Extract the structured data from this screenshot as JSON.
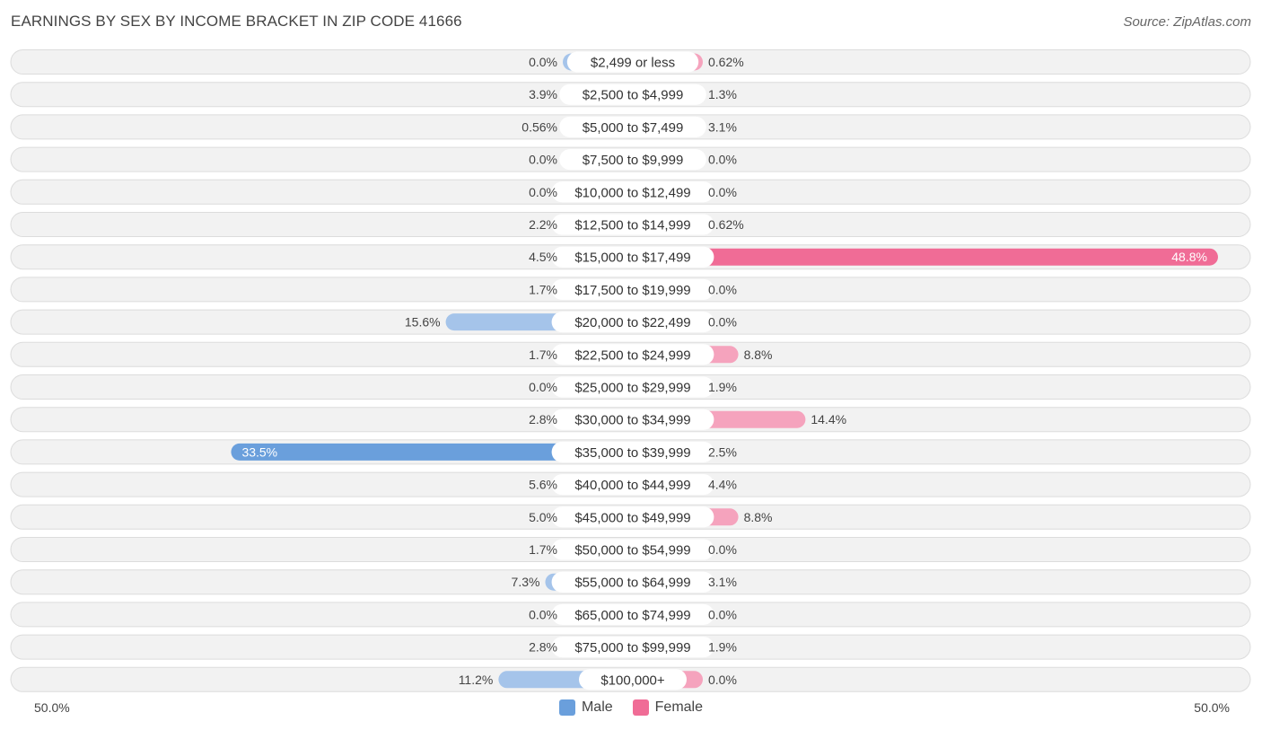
{
  "chart_data": {
    "type": "bar",
    "orientation": "horizontal-diverging",
    "title": "EARNINGS BY SEX BY INCOME BRACKET IN ZIP CODE 41666",
    "source": "Source: ZipAtlas.com",
    "axis": {
      "min_label": "50.0%",
      "max_label": "50.0%",
      "max_value": 50
    },
    "categories": [
      "$2,499 or less",
      "$2,500 to $4,999",
      "$5,000 to $7,499",
      "$7,500 to $9,999",
      "$10,000 to $12,499",
      "$12,500 to $14,999",
      "$15,000 to $17,499",
      "$17,500 to $19,999",
      "$20,000 to $22,499",
      "$22,500 to $24,999",
      "$25,000 to $29,999",
      "$30,000 to $34,999",
      "$35,000 to $39,999",
      "$40,000 to $44,999",
      "$45,000 to $49,999",
      "$50,000 to $54,999",
      "$55,000 to $64,999",
      "$65,000 to $74,999",
      "$75,000 to $99,999",
      "$100,000+"
    ],
    "series": [
      {
        "name": "Male",
        "color": "#a5c4ea",
        "highlight_color": "#6a9fdc",
        "values": [
          0.0,
          3.9,
          0.56,
          0.0,
          0.0,
          2.2,
          4.5,
          1.7,
          15.6,
          1.7,
          0.0,
          2.8,
          33.5,
          5.6,
          5.0,
          1.7,
          7.3,
          0.0,
          2.8,
          11.2
        ],
        "labels": [
          "0.0%",
          "3.9%",
          "0.56%",
          "0.0%",
          "0.0%",
          "2.2%",
          "4.5%",
          "1.7%",
          "15.6%",
          "1.7%",
          "0.0%",
          "2.8%",
          "33.5%",
          "5.6%",
          "5.0%",
          "1.7%",
          "7.3%",
          "0.0%",
          "2.8%",
          "11.2%"
        ]
      },
      {
        "name": "Female",
        "color": "#f5a3bd",
        "highlight_color": "#f06c96",
        "values": [
          0.62,
          1.3,
          3.1,
          0.0,
          0.0,
          0.62,
          48.8,
          0.0,
          0.0,
          8.8,
          1.9,
          14.4,
          2.5,
          4.4,
          8.8,
          0.0,
          3.1,
          0.0,
          1.9,
          0.0
        ],
        "labels": [
          "0.62%",
          "1.3%",
          "3.1%",
          "0.0%",
          "0.0%",
          "0.62%",
          "48.8%",
          "0.0%",
          "0.0%",
          "8.8%",
          "1.9%",
          "14.4%",
          "2.5%",
          "4.4%",
          "8.8%",
          "0.0%",
          "3.1%",
          "0.0%",
          "1.9%",
          "0.0%"
        ]
      }
    ],
    "legend": [
      {
        "name": "Male",
        "color": "#6a9fdc"
      },
      {
        "name": "Female",
        "color": "#f06c96"
      }
    ]
  }
}
